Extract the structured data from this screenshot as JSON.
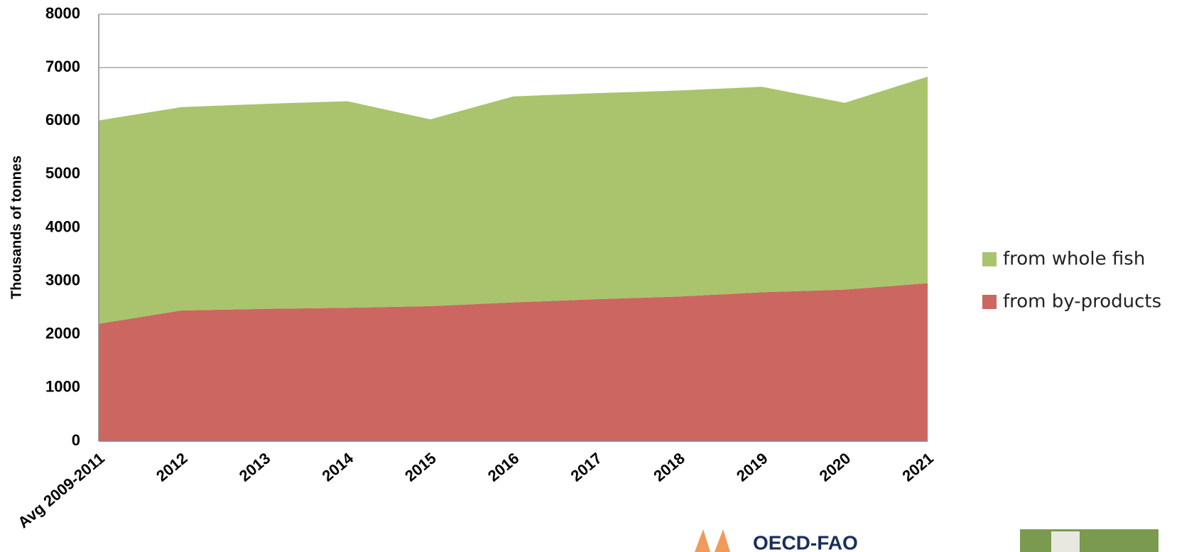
{
  "chart_data": {
    "type": "area",
    "y_label": "Thousands of tonnes",
    "categories": [
      "Avg 2009-2011",
      "2012",
      "2013",
      "2014",
      "2015",
      "2016",
      "2017",
      "2018",
      "2019",
      "2020",
      "2021"
    ],
    "series": [
      {
        "name": "from by-products",
        "color": "#cc6660",
        "values": [
          2200,
          2450,
          2480,
          2500,
          2530,
          2600,
          2660,
          2710,
          2790,
          2840,
          2960
        ]
      },
      {
        "name": "from whole fish",
        "color": "#a9c46c",
        "values": [
          3810,
          3810,
          3840,
          3870,
          3500,
          3860,
          3860,
          3860,
          3850,
          3500,
          3870
        ]
      }
    ],
    "stacked": true,
    "ylim": [
      0,
      8000
    ],
    "yticks": [
      0,
      1000,
      2000,
      3000,
      4000,
      5000,
      6000,
      7000,
      8000
    ],
    "grid": true
  },
  "logo": {
    "text": "OECD-FAO"
  }
}
